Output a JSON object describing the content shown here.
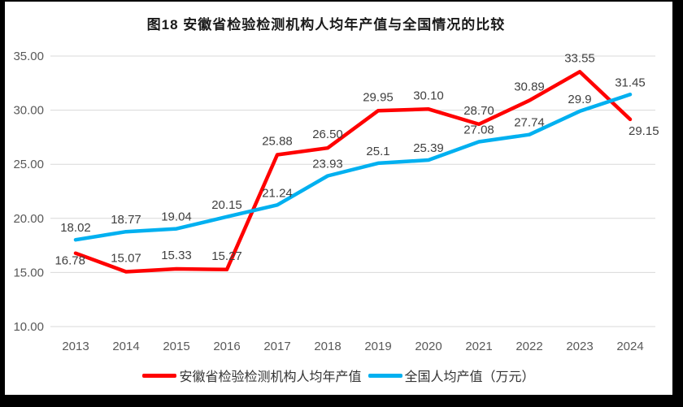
{
  "title": "图18 安徽省检验检测机构人均年产值与全国情况的比较",
  "chart_data": {
    "type": "line",
    "categories": [
      "2013",
      "2014",
      "2015",
      "2016",
      "2017",
      "2018",
      "2019",
      "2020",
      "2021",
      "2022",
      "2023",
      "2024"
    ],
    "series": [
      {
        "name": "安徽省检验检测机构人均年产值",
        "color": "#FF0000",
        "values": [
          16.78,
          15.07,
          15.33,
          15.27,
          25.88,
          26.5,
          29.95,
          30.1,
          28.7,
          30.89,
          33.55,
          29.15
        ],
        "labels": [
          "16.78",
          "15.07",
          "15.33",
          "15.27",
          "25.88",
          "26.50",
          "29.95",
          "30.10",
          "28.70",
          "30.89",
          "33.55",
          "29.15"
        ]
      },
      {
        "name": "全国人均产值（万元）",
        "color": "#00B0F0",
        "values": [
          18.02,
          18.77,
          19.04,
          20.15,
          21.24,
          23.93,
          25.1,
          25.39,
          27.08,
          27.74,
          29.9,
          31.45
        ],
        "labels": [
          "18.02",
          "18.77",
          "19.04",
          "20.15",
          "21.24",
          "23.93",
          "25.1",
          "25.39",
          "27.08",
          "27.74",
          "29.9",
          "31.45"
        ]
      }
    ],
    "title": "图18 安徽省检验检测机构人均年产值与全国情况的比较",
    "xlabel": "",
    "ylabel": "",
    "ylim": [
      10,
      35
    ],
    "ytick_step": 5,
    "ytick_labels": [
      "10.00",
      "15.00",
      "20.00",
      "25.00",
      "30.00",
      "35.00"
    ],
    "grid": "horizontal-only",
    "legend_position": "bottom",
    "colors": {
      "gridline": "#D9D9D9",
      "axis_text": "#595959",
      "data_label_text": "#3f3f3f",
      "background": "#ffffff",
      "frame": "#000000"
    }
  },
  "legend": {
    "items": [
      {
        "label": "安徽省检验检测机构人均年产值",
        "color": "#FF0000"
      },
      {
        "label": "全国人均产值（万元）",
        "color": "#00B0F0"
      }
    ]
  }
}
